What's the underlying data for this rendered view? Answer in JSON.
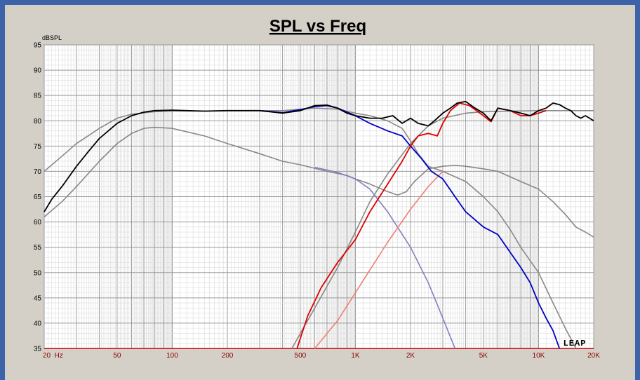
{
  "chart_data": {
    "type": "line",
    "title": "SPL vs Freq",
    "ylabel": "dBSPL",
    "xscale": "log",
    "xlim": [
      20,
      20000
    ],
    "ylim": [
      35,
      95
    ],
    "grid": true,
    "yticks": [
      35,
      40,
      45,
      50,
      55,
      60,
      65,
      70,
      75,
      80,
      85,
      90,
      95
    ],
    "xticks": [
      {
        "value": 20,
        "label": "20  Hz"
      },
      {
        "value": 50,
        "label": "50"
      },
      {
        "value": 100,
        "label": "100"
      },
      {
        "value": 200,
        "label": "200"
      },
      {
        "value": 500,
        "label": "500"
      },
      {
        "value": 1000,
        "label": "1K"
      },
      {
        "value": 2000,
        "label": "2K"
      },
      {
        "value": 5000,
        "label": "5K"
      },
      {
        "value": 10000,
        "label": "10K"
      },
      {
        "value": 20000,
        "label": "20K"
      }
    ],
    "watermark": "LEAP",
    "series": [
      {
        "color": "#888888",
        "points": [
          [
            20,
            70
          ],
          [
            25,
            73
          ],
          [
            30,
            75.5
          ],
          [
            40,
            78.5
          ],
          [
            50,
            80.5
          ],
          [
            60,
            81.3
          ],
          [
            80,
            81.8
          ],
          [
            100,
            81.9
          ],
          [
            150,
            81.9
          ],
          [
            200,
            82
          ],
          [
            300,
            82
          ],
          [
            400,
            82
          ],
          [
            600,
            82.5
          ],
          [
            800,
            82.3
          ],
          [
            1000,
            81.5
          ],
          [
            1200,
            81
          ],
          [
            1500,
            80
          ],
          [
            1800,
            78.5
          ],
          [
            2000,
            76
          ],
          [
            2200,
            73.5
          ],
          [
            2500,
            71
          ],
          [
            3000,
            70
          ],
          [
            4000,
            68
          ],
          [
            5000,
            65
          ],
          [
            6000,
            62
          ],
          [
            7000,
            58.5
          ],
          [
            8000,
            55
          ],
          [
            10000,
            50
          ],
          [
            12000,
            44
          ],
          [
            14000,
            39
          ],
          [
            16000,
            35
          ]
        ]
      },
      {
        "color": "#888888",
        "points": [
          [
            20,
            61
          ],
          [
            25,
            64
          ],
          [
            30,
            67
          ],
          [
            40,
            72
          ],
          [
            50,
            75.5
          ],
          [
            60,
            77.5
          ],
          [
            70,
            78.5
          ],
          [
            80,
            78.7
          ],
          [
            100,
            78.5
          ],
          [
            150,
            77
          ],
          [
            200,
            75.5
          ],
          [
            300,
            73.5
          ],
          [
            400,
            72
          ],
          [
            500,
            71.3
          ],
          [
            700,
            70
          ],
          [
            900,
            69.2
          ],
          [
            1000,
            68.5
          ],
          [
            1200,
            67.5
          ],
          [
            1500,
            66
          ],
          [
            1700,
            65.3
          ],
          [
            1900,
            66
          ],
          [
            2100,
            68
          ],
          [
            2500,
            70.5
          ],
          [
            3000,
            71
          ],
          [
            3500,
            71.2
          ],
          [
            4000,
            71
          ],
          [
            5000,
            70.5
          ],
          [
            6000,
            70
          ],
          [
            8000,
            68
          ],
          [
            10000,
            66.5
          ],
          [
            12000,
            64
          ],
          [
            14000,
            61.5
          ],
          [
            16000,
            59
          ],
          [
            18000,
            58
          ],
          [
            20000,
            57
          ]
        ]
      },
      {
        "color": "#8080c0",
        "points": [
          [
            600,
            70.8
          ],
          [
            800,
            69.8
          ],
          [
            1000,
            68.5
          ],
          [
            1200,
            66.5
          ],
          [
            1500,
            62
          ],
          [
            2000,
            55
          ],
          [
            2500,
            48
          ],
          [
            3000,
            41
          ],
          [
            3500,
            35
          ]
        ]
      },
      {
        "color": "#888888",
        "points": [
          [
            450,
            35
          ],
          [
            600,
            43
          ],
          [
            800,
            51
          ],
          [
            1000,
            58
          ],
          [
            1200,
            64
          ],
          [
            1500,
            69.5
          ],
          [
            2000,
            75.5
          ],
          [
            2500,
            79
          ],
          [
            3000,
            80.5
          ],
          [
            4000,
            81.5
          ],
          [
            5000,
            81.8
          ],
          [
            7000,
            81.9
          ],
          [
            10000,
            82
          ],
          [
            15000,
            82
          ],
          [
            20000,
            82
          ]
        ]
      },
      {
        "color": "#f08070",
        "points": [
          [
            600,
            35
          ],
          [
            800,
            40.5
          ],
          [
            1000,
            46
          ],
          [
            1200,
            50.5
          ],
          [
            1500,
            56
          ],
          [
            2000,
            62.5
          ],
          [
            2500,
            67
          ],
          [
            3000,
            70
          ]
        ]
      },
      {
        "color": "#0000c8",
        "points": [
          [
            300,
            82
          ],
          [
            400,
            81.6
          ],
          [
            500,
            82.2
          ],
          [
            600,
            82.8
          ],
          [
            700,
            83
          ],
          [
            800,
            82.5
          ],
          [
            1000,
            81
          ],
          [
            1200,
            79.5
          ],
          [
            1500,
            78
          ],
          [
            1800,
            77
          ],
          [
            2000,
            75
          ],
          [
            2300,
            72.5
          ],
          [
            2600,
            70
          ],
          [
            3000,
            68.5
          ],
          [
            3500,
            65
          ],
          [
            4000,
            62
          ],
          [
            5000,
            59
          ],
          [
            6000,
            57.5
          ],
          [
            7000,
            54
          ],
          [
            8000,
            51
          ],
          [
            9000,
            48
          ],
          [
            10000,
            44
          ],
          [
            11000,
            41
          ],
          [
            12000,
            38.5
          ],
          [
            13000,
            35
          ]
        ]
      },
      {
        "color": "#dd0000",
        "points": [
          [
            480,
            35
          ],
          [
            550,
            41.5
          ],
          [
            650,
            47
          ],
          [
            800,
            52
          ],
          [
            1000,
            56.5
          ],
          [
            1200,
            62
          ],
          [
            1500,
            67.5
          ],
          [
            1800,
            72
          ],
          [
            2000,
            75
          ],
          [
            2200,
            77
          ],
          [
            2500,
            77.5
          ],
          [
            2800,
            77
          ],
          [
            3000,
            79.5
          ],
          [
            3300,
            82
          ],
          [
            3700,
            83.5
          ],
          [
            4200,
            83
          ],
          [
            5000,
            81
          ],
          [
            5500,
            79.8
          ],
          [
            6000,
            82.5
          ],
          [
            7000,
            82
          ],
          [
            8000,
            81
          ],
          [
            9000,
            81
          ],
          [
            10000,
            81.5
          ],
          [
            11000,
            82
          ]
        ]
      },
      {
        "color": "#000000",
        "points": [
          [
            20,
            62
          ],
          [
            22,
            64.5
          ],
          [
            25,
            67
          ],
          [
            30,
            71
          ],
          [
            35,
            74
          ],
          [
            40,
            76.5
          ],
          [
            50,
            79.5
          ],
          [
            60,
            81
          ],
          [
            70,
            81.7
          ],
          [
            80,
            82
          ],
          [
            100,
            82.1
          ],
          [
            150,
            81.9
          ],
          [
            200,
            82
          ],
          [
            300,
            82
          ],
          [
            400,
            81.5
          ],
          [
            500,
            82
          ],
          [
            600,
            83
          ],
          [
            700,
            83.1
          ],
          [
            800,
            82.5
          ],
          [
            900,
            81.5
          ],
          [
            1000,
            81
          ],
          [
            1200,
            80.5
          ],
          [
            1400,
            80.5
          ],
          [
            1600,
            81
          ],
          [
            1800,
            79.5
          ],
          [
            2000,
            80.5
          ],
          [
            2200,
            79.5
          ],
          [
            2500,
            79
          ],
          [
            2700,
            80
          ],
          [
            3000,
            81.5
          ],
          [
            3300,
            82.5
          ],
          [
            3600,
            83.5
          ],
          [
            4000,
            83.8
          ],
          [
            4500,
            82.5
          ],
          [
            5000,
            81.5
          ],
          [
            5500,
            80
          ],
          [
            6000,
            82.5
          ],
          [
            7000,
            82
          ],
          [
            8000,
            81.5
          ],
          [
            9000,
            81
          ],
          [
            10000,
            82
          ],
          [
            11000,
            82.5
          ],
          [
            12000,
            83.5
          ],
          [
            13000,
            83.2
          ],
          [
            14000,
            82.5
          ],
          [
            15000,
            82
          ],
          [
            16000,
            81
          ],
          [
            17000,
            80.5
          ],
          [
            18000,
            81
          ],
          [
            19000,
            80.5
          ],
          [
            20000,
            80
          ]
        ]
      }
    ]
  }
}
